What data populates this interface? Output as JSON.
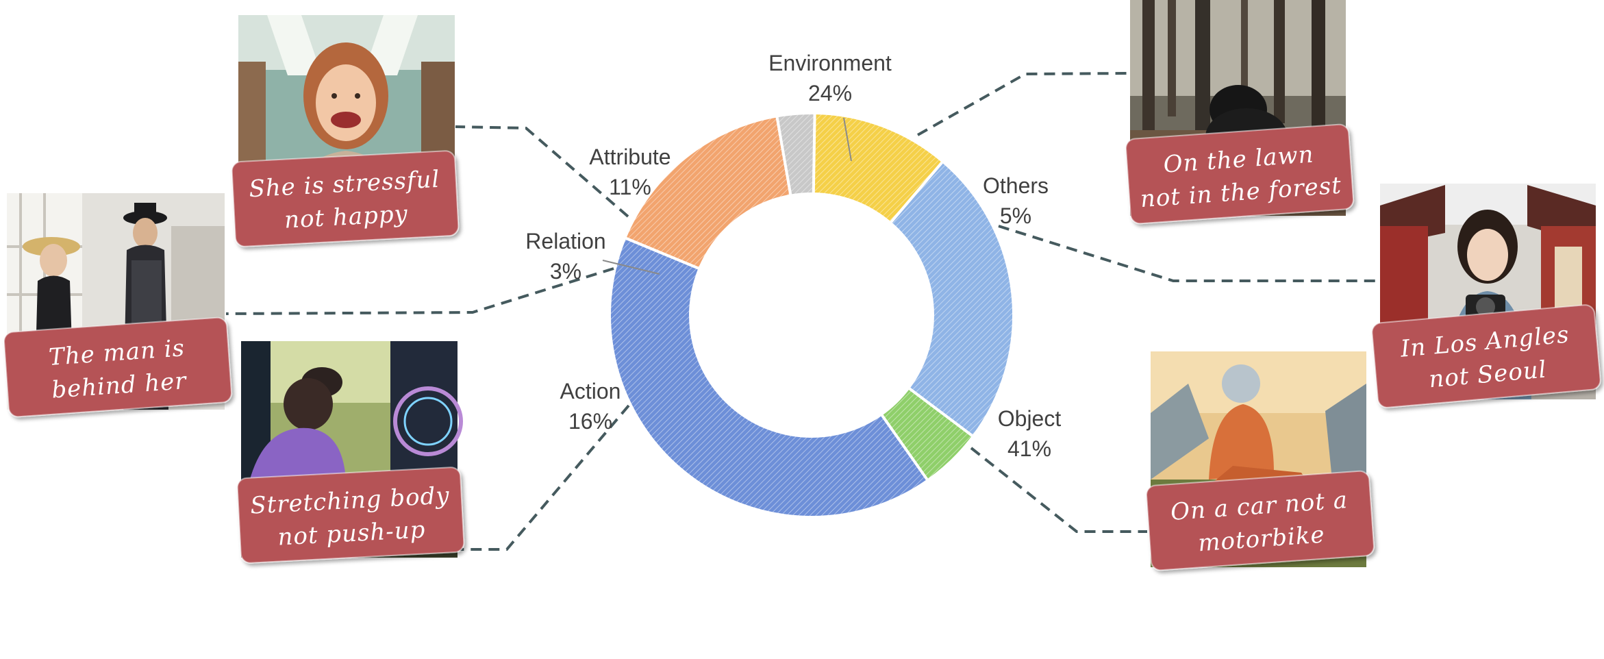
{
  "chart_data": {
    "type": "pie",
    "slices": [
      {
        "name": "Environment",
        "value": 24,
        "label": "24%"
      },
      {
        "name": "Others",
        "value": 5,
        "label": "5%"
      },
      {
        "name": "Object",
        "value": 41,
        "label": "41%"
      },
      {
        "name": "Action",
        "value": 16,
        "label": "16%"
      },
      {
        "name": "Relation",
        "value": 3,
        "label": "3%"
      },
      {
        "name": "Attribute",
        "value": 11,
        "label": "11%"
      }
    ],
    "colors": [
      "#8fb4e6",
      "#8fcf6a",
      "#6d8fd8",
      "#f2a46e",
      "#c8c8c8",
      "#f5d048"
    ]
  },
  "captions": {
    "attribute": [
      "She is stressful",
      "not happy"
    ],
    "relation": [
      "The man is",
      "behind her"
    ],
    "action": [
      "Stretching body",
      "not push-up"
    ],
    "environment": [
      "On the lawn",
      "not in the forest"
    ],
    "others": [
      "In Los Angles",
      "not Seoul"
    ],
    "object": [
      "On a car not a",
      "motorbike"
    ]
  }
}
